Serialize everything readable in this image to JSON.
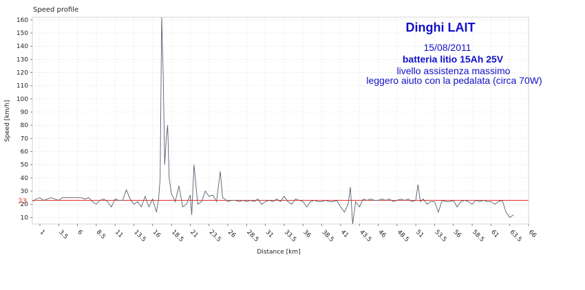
{
  "chart_data": {
    "type": "line",
    "title": "Speed profile",
    "xlabel": "Distance [km]",
    "ylabel": "Speed [km/h]",
    "xlim": [
      0,
      66
    ],
    "ylim": [
      5,
      162
    ],
    "x_ticks": [
      "1",
      "3.5",
      "6",
      "8.5",
      "11",
      "13.5",
      "16",
      "18.5",
      "21",
      "23.5",
      "26",
      "28.5",
      "31",
      "33.5",
      "36",
      "38.5",
      "41",
      "43.5",
      "46",
      "48.5",
      "51",
      "53.5",
      "56",
      "58.5",
      "61",
      "63.5",
      "66"
    ],
    "y_ticks": [
      "10",
      "20",
      "30",
      "40",
      "50",
      "60",
      "70",
      "80",
      "90",
      "100",
      "110",
      "120",
      "130",
      "140",
      "150",
      "160"
    ],
    "grid": true,
    "colors": {
      "series": "#5a5a6e",
      "reference": "#e03020",
      "annotation": "#1010c8"
    },
    "reference_line": {
      "value": 23,
      "label": "23"
    },
    "annotations": [
      "Dinghi LAIT",
      "15/08/2011",
      "batteria litio 15Ah 25V",
      "livello assistenza massimo",
      "leggero aiuto con la pedalata (circa 70W)"
    ],
    "series": [
      {
        "x": [
          0,
          0.5,
          1,
          1.5,
          2,
          2.5,
          3,
          3.5,
          4,
          4.5,
          5,
          5.5,
          6,
          6.5,
          7,
          7.5,
          8,
          8.5,
          9,
          9.5,
          10,
          10.5,
          11,
          11.5,
          12,
          12.5,
          13,
          13.5,
          14,
          14.5,
          15,
          15.5,
          16,
          16.5,
          16.8,
          17,
          17.2,
          17.4,
          17.6,
          17.8,
          18,
          18.2,
          18.5,
          19,
          19.5,
          20,
          20.5,
          21,
          21.2,
          21.5,
          22,
          22.5,
          23,
          23.5,
          24,
          24.5,
          25,
          25.3,
          25.6,
          26,
          26.5,
          27,
          27.5,
          28,
          28.5,
          29,
          29.5,
          30,
          30.5,
          31,
          31.5,
          32,
          32.5,
          33,
          33.5,
          34,
          34.5,
          35,
          35.5,
          36,
          36.5,
          37,
          37.5,
          38,
          38.5,
          39,
          39.5,
          40,
          40.5,
          41,
          41.5,
          42,
          42.3,
          42.6,
          43,
          43.5,
          44,
          44.5,
          45,
          45.5,
          46,
          46.5,
          47,
          47.5,
          48,
          48.5,
          49,
          49.5,
          50,
          50.5,
          51,
          51.3,
          51.6,
          52,
          52.5,
          53,
          53.5,
          54,
          54.5,
          55,
          55.5,
          56,
          56.5,
          57,
          57.5,
          58,
          58.5,
          59,
          59.5,
          60,
          60.5,
          61,
          61.5,
          62,
          62.5,
          63,
          63.5,
          64
        ],
        "y": [
          22,
          24,
          25,
          23,
          24,
          25,
          24,
          23,
          25,
          25,
          25,
          25,
          25,
          25,
          24,
          25,
          22,
          20,
          23,
          24,
          22,
          18,
          24,
          23,
          23,
          31,
          24,
          20,
          22,
          18,
          26,
          18,
          24,
          14,
          24,
          40,
          162,
          120,
          50,
          70,
          80,
          40,
          28,
          22,
          34,
          18,
          20,
          27,
          12,
          50,
          20,
          22,
          30,
          26,
          27,
          22,
          45,
          25,
          24,
          22,
          23,
          23,
          22,
          23,
          22,
          23,
          22,
          24,
          20,
          22,
          23,
          22,
          24,
          22,
          26,
          22,
          20,
          24,
          23,
          22,
          18,
          22,
          23,
          22,
          22,
          23,
          22,
          22,
          23,
          18,
          14,
          20,
          33,
          5,
          22,
          18,
          24,
          23,
          24,
          23,
          23,
          24,
          23,
          24,
          22,
          23,
          24,
          23,
          24,
          22,
          23,
          35,
          22,
          24,
          20,
          22,
          22,
          14,
          23,
          22,
          22,
          23,
          18,
          22,
          23,
          22,
          20,
          23,
          22,
          23,
          22,
          22,
          20,
          22,
          23,
          14,
          10,
          12
        ]
      }
    ]
  }
}
